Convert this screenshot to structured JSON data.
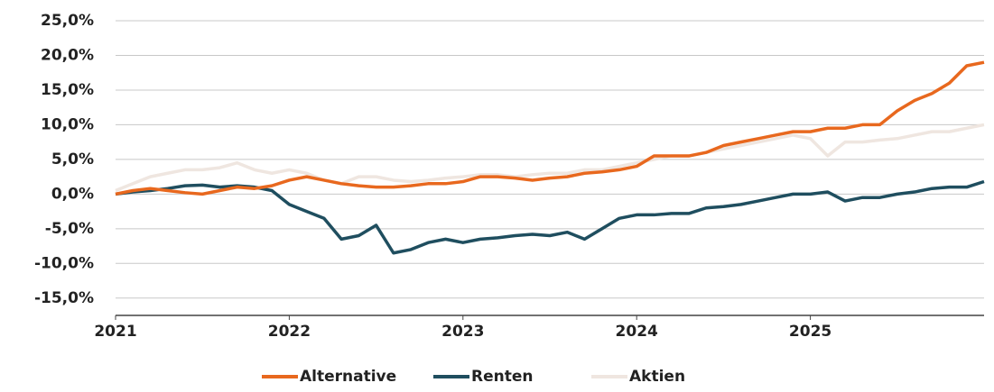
{
  "chart_data": {
    "type": "line",
    "x": [
      2021,
      2021.1,
      2021.2,
      2021.3,
      2021.4,
      2021.5,
      2021.6,
      2021.7,
      2021.8,
      2021.9,
      2022,
      2022.1,
      2022.2,
      2022.3,
      2022.4,
      2022.5,
      2022.6,
      2022.7,
      2022.8,
      2022.9,
      2023,
      2023.1,
      2023.2,
      2023.3,
      2023.4,
      2023.5,
      2023.6,
      2023.7,
      2023.8,
      2023.9,
      2024,
      2024.1,
      2024.2,
      2024.3,
      2024.4,
      2024.5,
      2024.6,
      2024.7,
      2024.8,
      2024.9,
      2025,
      2025.1,
      2025.2,
      2025.3,
      2025.4,
      2025.5,
      2025.6,
      2025.7,
      2025.8,
      2025.9,
      2026
    ],
    "series": [
      {
        "name": "Alternative",
        "color": "#e8681e",
        "values": [
          0,
          0.5,
          0.8,
          0.5,
          0.2,
          0,
          0.5,
          1.0,
          0.8,
          1.2,
          2.0,
          2.5,
          2.0,
          1.5,
          1.2,
          1.0,
          1.0,
          1.2,
          1.5,
          1.5,
          1.8,
          2.5,
          2.5,
          2.3,
          2.0,
          2.3,
          2.5,
          3.0,
          3.2,
          3.5,
          4.0,
          5.5,
          5.5,
          5.5,
          6.0,
          7.0,
          7.5,
          8.0,
          8.5,
          9.0,
          9.0,
          9.5,
          9.5,
          10.0,
          10.0,
          12.0,
          13.5,
          14.5,
          16.0,
          18.5,
          19.0
        ]
      },
      {
        "name": "Renten",
        "color": "#1f4e5f",
        "values": [
          0,
          0.3,
          0.5,
          0.8,
          1.2,
          1.3,
          1.0,
          1.2,
          1.0,
          0.5,
          -1.5,
          -2.5,
          -3.5,
          -6.5,
          -6.0,
          -4.5,
          -8.5,
          -8.0,
          -7.0,
          -6.5,
          -7.0,
          -6.5,
          -6.3,
          -6.0,
          -5.8,
          -6.0,
          -5.5,
          -6.5,
          -5.0,
          -3.5,
          -3.0,
          -3.0,
          -2.8,
          -2.8,
          -2.0,
          -1.8,
          -1.5,
          -1.0,
          -0.5,
          0.0,
          0.0,
          0.3,
          -1.0,
          -0.5,
          -0.5,
          0.0,
          0.3,
          0.8,
          1.0,
          1.0,
          1.8
        ]
      },
      {
        "name": "Aktien",
        "color": "#efe6e0",
        "values": [
          0.5,
          1.5,
          2.5,
          3.0,
          3.5,
          3.5,
          3.8,
          4.5,
          3.5,
          3.0,
          3.5,
          3.0,
          2.0,
          1.5,
          2.5,
          2.5,
          2.0,
          1.8,
          2.0,
          2.3,
          2.5,
          2.8,
          2.8,
          2.5,
          2.8,
          3.0,
          3.0,
          3.5,
          3.5,
          4.0,
          4.5,
          5.0,
          5.5,
          5.5,
          6.0,
          6.5,
          7.0,
          7.5,
          8.0,
          8.5,
          8.0,
          5.5,
          7.5,
          7.5,
          7.8,
          8.0,
          8.5,
          9.0,
          9.0,
          9.5,
          10.0
        ]
      }
    ],
    "xlim": [
      2021,
      2026
    ],
    "xticks": [
      2021,
      2022,
      2023,
      2024,
      2025
    ],
    "ylim": [
      -17.5,
      25
    ],
    "yticks": [
      {
        "value": 25,
        "label": "25,0%"
      },
      {
        "value": 20,
        "label": "20,0%"
      },
      {
        "value": 15,
        "label": "15,0%"
      },
      {
        "value": 10,
        "label": "10,0%"
      },
      {
        "value": 5,
        "label": "5,0%"
      },
      {
        "value": 0,
        "label": "0,0%"
      },
      {
        "value": -5,
        "label": "-5,0%"
      },
      {
        "value": -10,
        "label": "-10,0%"
      },
      {
        "value": -15,
        "label": "-15,0%"
      }
    ],
    "grid": true,
    "legend": "bottom"
  }
}
